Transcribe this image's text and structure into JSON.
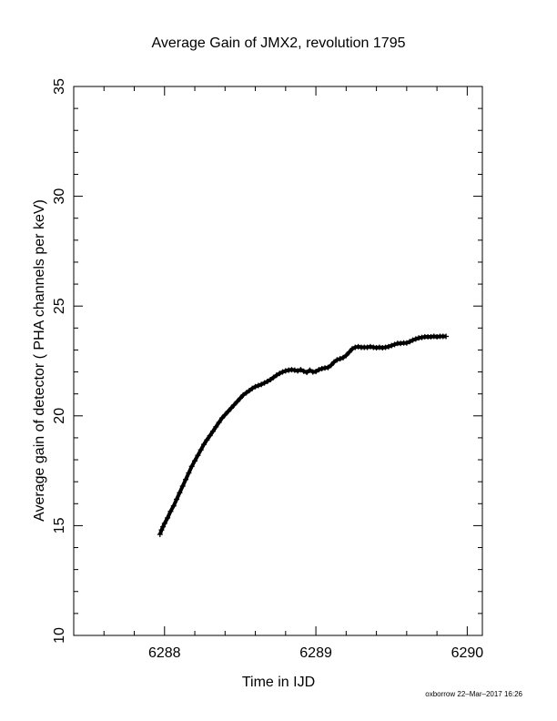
{
  "chart_data": {
    "type": "scatter",
    "title": "Average Gain of JMX2, revolution 1795",
    "xlabel": "Time in IJD",
    "ylabel": "Average gain of detector ( PHA channels per keV)",
    "xlim": [
      6287.4,
      6290.1
    ],
    "ylim": [
      10,
      35
    ],
    "x_ticks": [
      "6288",
      "6289",
      "6290"
    ],
    "y_ticks": [
      "10",
      "15",
      "20",
      "25",
      "30",
      "35"
    ],
    "grid": false,
    "marker": "plus",
    "series": [
      {
        "points": [
          [
            6287.97,
            14.6
          ],
          [
            6287.98,
            14.8
          ],
          [
            6287.99,
            14.95
          ],
          [
            6288.0,
            15.1
          ],
          [
            6288.02,
            15.35
          ],
          [
            6288.04,
            15.65
          ],
          [
            6288.06,
            15.9
          ],
          [
            6288.08,
            16.2
          ],
          [
            6288.1,
            16.5
          ],
          [
            6288.12,
            16.8
          ],
          [
            6288.14,
            17.1
          ],
          [
            6288.16,
            17.4
          ],
          [
            6288.18,
            17.7
          ],
          [
            6288.2,
            17.95
          ],
          [
            6288.22,
            18.2
          ],
          [
            6288.24,
            18.45
          ],
          [
            6288.26,
            18.7
          ],
          [
            6288.28,
            18.9
          ],
          [
            6288.3,
            19.1
          ],
          [
            6288.32,
            19.3
          ],
          [
            6288.34,
            19.5
          ],
          [
            6288.36,
            19.7
          ],
          [
            6288.38,
            19.9
          ],
          [
            6288.4,
            20.05
          ],
          [
            6288.42,
            20.2
          ],
          [
            6288.44,
            20.35
          ],
          [
            6288.46,
            20.5
          ],
          [
            6288.48,
            20.65
          ],
          [
            6288.5,
            20.8
          ],
          [
            6288.52,
            20.95
          ],
          [
            6288.54,
            21.05
          ],
          [
            6288.56,
            21.15
          ],
          [
            6288.58,
            21.25
          ],
          [
            6288.6,
            21.33
          ],
          [
            6288.62,
            21.38
          ],
          [
            6288.64,
            21.43
          ],
          [
            6288.66,
            21.5
          ],
          [
            6288.68,
            21.57
          ],
          [
            6288.7,
            21.65
          ],
          [
            6288.72,
            21.75
          ],
          [
            6288.74,
            21.85
          ],
          [
            6288.76,
            21.93
          ],
          [
            6288.78,
            22.0
          ],
          [
            6288.8,
            22.05
          ],
          [
            6288.82,
            22.08
          ],
          [
            6288.84,
            22.1
          ],
          [
            6288.86,
            22.08
          ],
          [
            6288.88,
            22.05
          ],
          [
            6288.9,
            22.1
          ],
          [
            6288.92,
            22.03
          ],
          [
            6288.94,
            21.98
          ],
          [
            6288.96,
            22.08
          ],
          [
            6288.98,
            22.0
          ],
          [
            6289.0,
            22.02
          ],
          [
            6289.02,
            22.1
          ],
          [
            6289.04,
            22.15
          ],
          [
            6289.06,
            22.18
          ],
          [
            6289.08,
            22.2
          ],
          [
            6289.1,
            22.3
          ],
          [
            6289.12,
            22.45
          ],
          [
            6289.14,
            22.55
          ],
          [
            6289.16,
            22.6
          ],
          [
            6289.18,
            22.65
          ],
          [
            6289.2,
            22.75
          ],
          [
            6289.22,
            22.9
          ],
          [
            6289.24,
            23.05
          ],
          [
            6289.26,
            23.12
          ],
          [
            6289.28,
            23.15
          ],
          [
            6289.3,
            23.12
          ],
          [
            6289.32,
            23.12
          ],
          [
            6289.34,
            23.12
          ],
          [
            6289.36,
            23.15
          ],
          [
            6289.38,
            23.12
          ],
          [
            6289.4,
            23.1
          ],
          [
            6289.42,
            23.12
          ],
          [
            6289.44,
            23.1
          ],
          [
            6289.46,
            23.12
          ],
          [
            6289.48,
            23.15
          ],
          [
            6289.5,
            23.2
          ],
          [
            6289.52,
            23.25
          ],
          [
            6289.54,
            23.3
          ],
          [
            6289.56,
            23.3
          ],
          [
            6289.58,
            23.32
          ],
          [
            6289.6,
            23.32
          ],
          [
            6289.62,
            23.38
          ],
          [
            6289.64,
            23.45
          ],
          [
            6289.66,
            23.5
          ],
          [
            6289.68,
            23.55
          ],
          [
            6289.7,
            23.57
          ],
          [
            6289.72,
            23.6
          ],
          [
            6289.74,
            23.6
          ],
          [
            6289.76,
            23.6
          ],
          [
            6289.78,
            23.62
          ],
          [
            6289.8,
            23.6
          ],
          [
            6289.82,
            23.62
          ],
          [
            6289.84,
            23.62
          ],
          [
            6289.86,
            23.62
          ]
        ]
      }
    ],
    "footer": "oxborrow 22–Mar–2017 16:26"
  }
}
